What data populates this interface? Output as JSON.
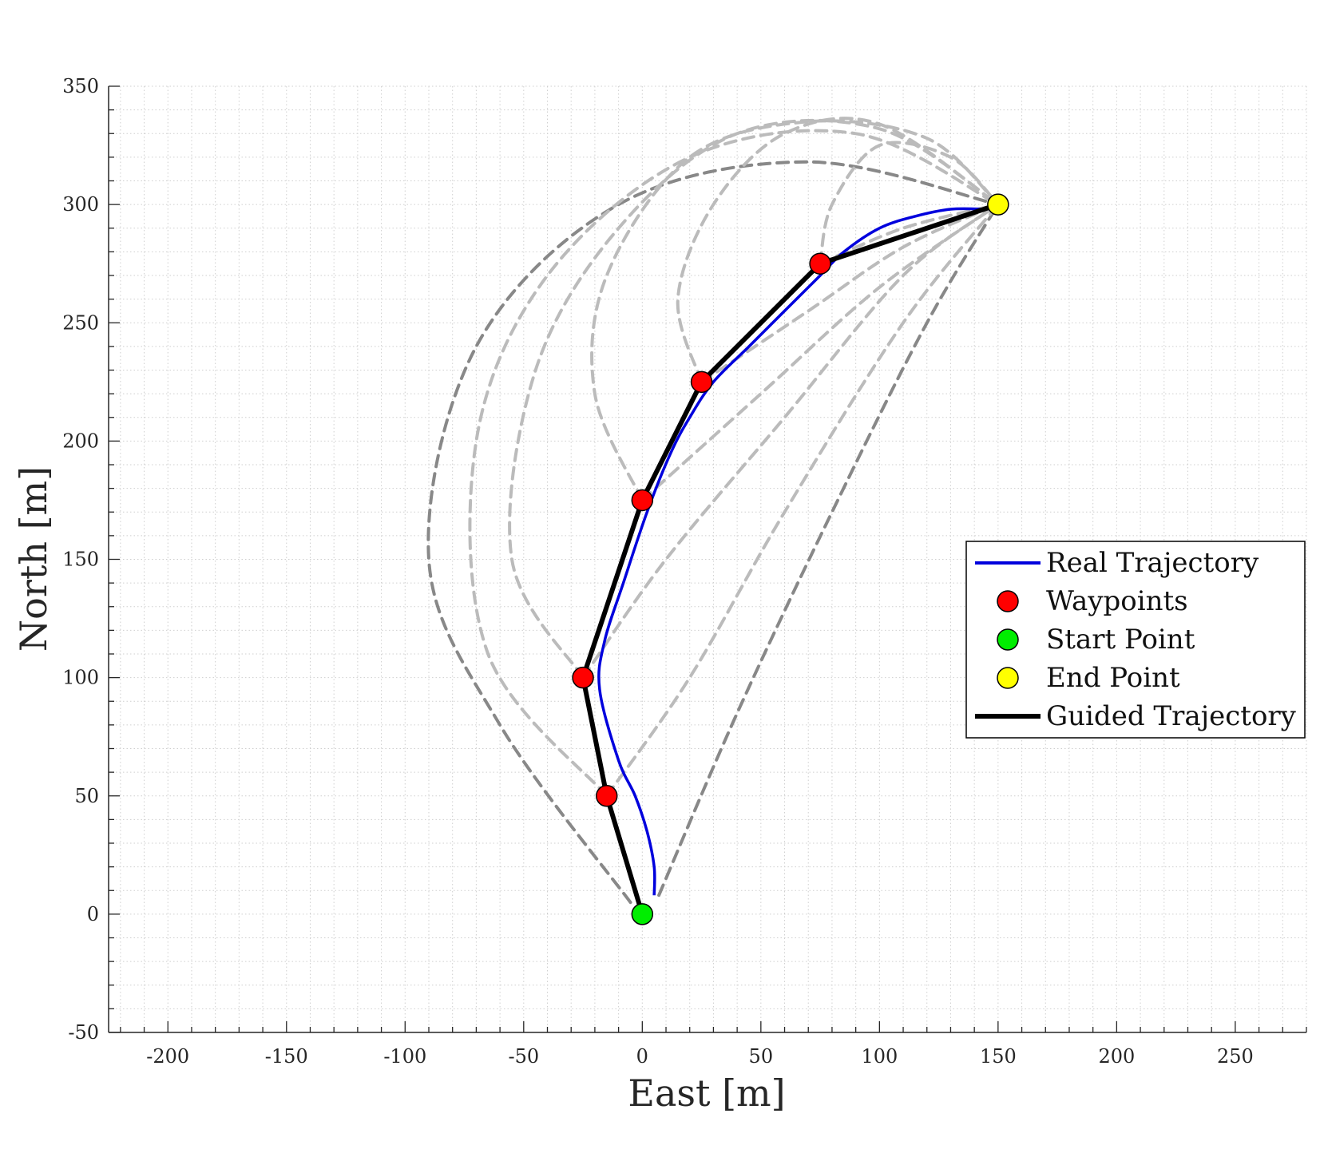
{
  "chart_data": {
    "type": "line",
    "xlabel": "East [m]",
    "ylabel": "North [m]",
    "xlim": [
      -225,
      280
    ],
    "ylim": [
      -50,
      350
    ],
    "xticks": [
      -200,
      -150,
      -100,
      -50,
      0,
      50,
      100,
      150,
      200,
      250
    ],
    "yticks": [
      -50,
      0,
      50,
      100,
      150,
      200,
      250,
      300,
      350
    ],
    "xtick_labels": [
      "-200",
      "-150",
      "-100",
      "-50",
      "0",
      "50",
      "100",
      "150",
      "200",
      "250"
    ],
    "ytick_labels": [
      "-50",
      "0",
      "50",
      "100",
      "150",
      "200",
      "250",
      "300",
      "350"
    ],
    "grid": "minor dotted grid on",
    "legend_position": "right",
    "colors": {
      "real": "#0000dd",
      "guided": "#000000",
      "waypoint": "#ff0000",
      "start": "#00ee00",
      "end": "#ffff00",
      "candidate_dark": "#888888",
      "candidate_light": "#bbbbbb",
      "grid": "#cfcfcf",
      "axis": "#262626"
    },
    "series": [
      {
        "name": "Real Trajectory",
        "style": "solid-line",
        "x": [
          5,
          5,
          2,
          -3,
          -10,
          -18,
          -16,
          -8,
          2,
          12,
          20,
          30,
          45,
          60,
          75,
          85,
          100,
          115,
          130,
          145
        ],
        "y": [
          8,
          20,
          35,
          50,
          65,
          95,
          115,
          140,
          170,
          195,
          210,
          225,
          240,
          255,
          270,
          280,
          290,
          295,
          298,
          298
        ]
      },
      {
        "name": "Waypoints",
        "style": "markers",
        "x": [
          -15,
          -25,
          0,
          25,
          75
        ],
        "y": [
          50,
          100,
          175,
          225,
          275
        ]
      },
      {
        "name": "Start Point",
        "style": "markers",
        "x": [
          0
        ],
        "y": [
          0
        ]
      },
      {
        "name": "End Point",
        "style": "markers",
        "x": [
          150
        ],
        "y": [
          300
        ]
      },
      {
        "name": "Guided Trajectory",
        "style": "thick-line",
        "x": [
          0,
          -15,
          -25,
          0,
          25,
          75,
          150
        ],
        "y": [
          0,
          50,
          100,
          175,
          225,
          275,
          300
        ]
      }
    ],
    "candidate_paths": [
      {
        "shade": "dark",
        "x": [
          -5,
          -60,
          -90,
          -70,
          -10,
          70,
          150
        ],
        "y": [
          5,
          80,
          150,
          240,
          300,
          318,
          300
        ]
      },
      {
        "shade": "dark",
        "x": [
          7,
          40,
          80,
          120,
          150
        ],
        "y": [
          8,
          85,
          170,
          250,
          300
        ]
      },
      {
        "shade": "light",
        "x": [
          -15,
          -65,
          -70,
          -40,
          20,
          90,
          150
        ],
        "y": [
          50,
          110,
          200,
          270,
          320,
          330,
          300
        ]
      },
      {
        "shade": "light",
        "x": [
          -25,
          -55,
          -45,
          -10,
          40,
          100,
          150
        ],
        "y": [
          100,
          150,
          230,
          290,
          330,
          332,
          300
        ]
      },
      {
        "shade": "light",
        "x": [
          0,
          -20,
          -15,
          20,
          70,
          120,
          150
        ],
        "y": [
          175,
          220,
          270,
          320,
          335,
          328,
          300
        ]
      },
      {
        "shade": "light",
        "x": [
          25,
          15,
          30,
          60,
          100,
          150
        ],
        "y": [
          225,
          260,
          300,
          330,
          334,
          300
        ]
      },
      {
        "shade": "light",
        "x": [
          75,
          80,
          100,
          130,
          150
        ],
        "y": [
          275,
          300,
          325,
          320,
          300
        ]
      },
      {
        "shade": "light",
        "x": [
          -15,
          20,
          60,
          110,
          150
        ],
        "y": [
          50,
          100,
          170,
          250,
          300
        ]
      },
      {
        "shade": "light",
        "x": [
          -25,
          10,
          60,
          110,
          150
        ],
        "y": [
          100,
          150,
          210,
          270,
          300
        ]
      },
      {
        "shade": "light",
        "x": [
          0,
          50,
          100,
          150
        ],
        "y": [
          175,
          220,
          265,
          300
        ]
      },
      {
        "shade": "light",
        "x": [
          25,
          70,
          110,
          150
        ],
        "y": [
          225,
          255,
          282,
          300
        ]
      },
      {
        "shade": "light",
        "x": [
          75,
          110,
          150
        ],
        "y": [
          275,
          290,
          300
        ]
      }
    ]
  }
}
